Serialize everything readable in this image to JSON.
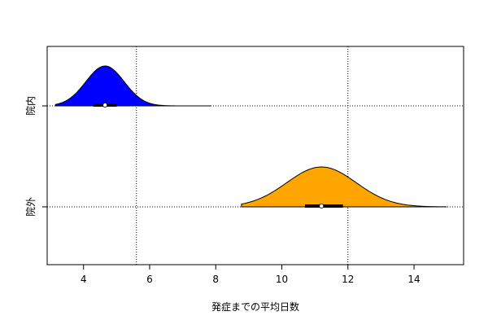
{
  "chart_data": {
    "type": "violin",
    "title": "",
    "xlabel": "発症までの平均日数",
    "ylabel": "",
    "xlim": [
      2.9,
      15.5
    ],
    "xticks": [
      4,
      6,
      8,
      10,
      12,
      14
    ],
    "grid": {
      "vertical_lines": [
        5.6,
        12.0
      ],
      "horizontal_at_categories": true,
      "style": "dotted"
    },
    "categories": [
      "院内",
      "院外"
    ],
    "series": [
      {
        "category": "院内",
        "color": "#0000ff",
        "min": 3.15,
        "max": 7.85,
        "mode": 4.65,
        "density_peak_sd": 0.58,
        "box": {
          "q1": 4.3,
          "median": 4.65,
          "q3": 5.0
        }
      },
      {
        "category": "院外",
        "color": "#ffa500",
        "min": 8.78,
        "max": 14.98,
        "mode": 11.2,
        "density_peak_sd": 1.05,
        "box": {
          "q1": 10.7,
          "median": 11.2,
          "q3": 11.85
        }
      }
    ]
  }
}
